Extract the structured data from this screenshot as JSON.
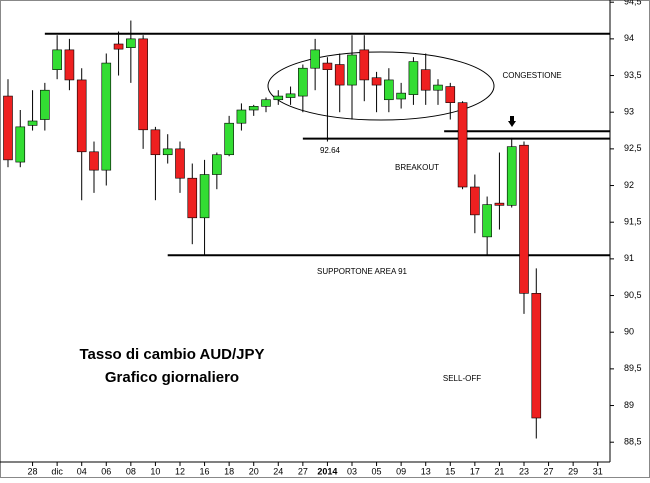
{
  "chart_data": {
    "type": "candlestick",
    "title": "Tasso di cambio AUD/JPY",
    "subtitle": "Grafico giornaliero",
    "up_color": "#33dd33",
    "down_color": "#ee2020",
    "open": [
      93.22,
      92.32,
      92.82,
      92.9,
      93.58,
      93.85,
      93.44,
      92.46,
      92.21,
      93.93,
      93.88,
      94.0,
      92.76,
      92.42,
      92.5,
      92.1,
      91.56,
      92.15,
      92.42,
      92.85,
      93.03,
      93.08,
      93.17,
      93.2,
      93.22,
      93.6,
      93.67,
      93.65,
      93.37,
      93.85,
      93.47,
      93.17,
      93.18,
      93.24,
      93.58,
      93.3,
      93.35,
      93.13,
      91.98,
      91.3,
      91.76,
      91.73,
      92.55,
      90.53
    ],
    "high": [
      93.45,
      93.03,
      93.3,
      93.4,
      94.05,
      94.0,
      93.6,
      92.6,
      93.8,
      94.1,
      94.25,
      94.05,
      92.8,
      92.7,
      92.6,
      92.3,
      92.35,
      92.45,
      92.95,
      93.12,
      93.1,
      93.2,
      93.3,
      93.35,
      93.65,
      94.0,
      93.75,
      93.8,
      94.05,
      94.05,
      93.55,
      93.6,
      93.4,
      93.75,
      93.8,
      93.45,
      93.4,
      93.15,
      92.15,
      91.85,
      92.45,
      92.65,
      92.6,
      90.87
    ],
    "low": [
      92.25,
      92.25,
      92.75,
      92.75,
      93.45,
      93.3,
      91.8,
      91.9,
      92.0,
      93.5,
      93.4,
      92.5,
      91.8,
      92.3,
      91.9,
      91.2,
      91.05,
      91.95,
      92.4,
      92.75,
      92.95,
      93.0,
      93.1,
      93.1,
      93.0,
      93.3,
      92.6,
      93.0,
      92.9,
      93.15,
      93.0,
      93.0,
      93.05,
      93.1,
      93.1,
      93.1,
      92.9,
      91.95,
      91.35,
      91.05,
      91.4,
      91.7,
      90.25,
      88.55
    ],
    "close": [
      92.35,
      92.8,
      92.88,
      93.3,
      93.85,
      93.44,
      92.46,
      92.21,
      93.67,
      93.86,
      94.0,
      92.76,
      92.42,
      92.5,
      92.1,
      91.56,
      92.15,
      92.42,
      92.85,
      93.03,
      93.08,
      93.17,
      93.22,
      93.25,
      93.6,
      93.85,
      93.58,
      93.37,
      93.78,
      93.44,
      93.37,
      93.44,
      93.26,
      93.69,
      93.3,
      93.37,
      93.13,
      91.98,
      91.6,
      91.74,
      91.73,
      92.53,
      90.53,
      88.83
    ],
    "xlim": [
      -0.65,
      49.0
    ],
    "xticks": [
      {
        "value": 2,
        "label": "28"
      },
      {
        "value": 4,
        "label": "dic"
      },
      {
        "value": 6,
        "label": "04"
      },
      {
        "value": 8,
        "label": "06"
      },
      {
        "value": 10,
        "label": "08"
      },
      {
        "value": 12,
        "label": "10"
      },
      {
        "value": 14,
        "label": "12"
      },
      {
        "value": 16,
        "label": "16"
      },
      {
        "value": 18,
        "label": "18"
      },
      {
        "value": 20,
        "label": "20"
      },
      {
        "value": 22,
        "label": "24"
      },
      {
        "value": 24,
        "label": "27"
      },
      {
        "value": 26,
        "label": "2014"
      },
      {
        "value": 28,
        "label": "03"
      },
      {
        "value": 30,
        "label": "05"
      },
      {
        "value": 32,
        "label": "09"
      },
      {
        "value": 34,
        "label": "13"
      },
      {
        "value": 36,
        "label": "15"
      },
      {
        "value": 38,
        "label": "17"
      },
      {
        "value": 40,
        "label": "21"
      },
      {
        "value": 42,
        "label": "23"
      },
      {
        "value": 44,
        "label": "27"
      },
      {
        "value": 46,
        "label": "29"
      },
      {
        "value": 48,
        "label": "31"
      }
    ],
    "ylim": [
      88.23,
      94.53
    ],
    "yticks": [
      {
        "value": 94.5,
        "label": "94,5"
      },
      94,
      {
        "value": 93.5,
        "label": "93,5"
      },
      93,
      {
        "value": 92.5,
        "label": "92,5"
      },
      92,
      {
        "value": 91.5,
        "label": "91,5"
      },
      91,
      {
        "value": 90.5,
        "label": "90,5"
      },
      90,
      {
        "value": 89.5,
        "label": "89,5"
      },
      89,
      {
        "value": 88.5,
        "label": "88,5"
      }
    ],
    "levels": [
      {
        "value": 94.07,
        "from": 3
      },
      {
        "value": 92.64,
        "from": 24
      },
      {
        "value": 92.74,
        "from": 35.5
      },
      {
        "value": 91.05,
        "from": 13
      }
    ],
    "annotations": [
      "CONGESTIONE",
      "92.64",
      "BREAKOUT",
      "SUPPORTONE AREA 91",
      "SELL-OFF"
    ]
  }
}
